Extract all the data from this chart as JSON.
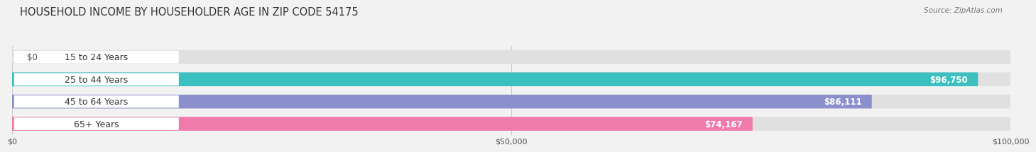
{
  "title": "HOUSEHOLD INCOME BY HOUSEHOLDER AGE IN ZIP CODE 54175",
  "source": "Source: ZipAtlas.com",
  "categories": [
    "15 to 24 Years",
    "25 to 44 Years",
    "45 to 64 Years",
    "65+ Years"
  ],
  "values": [
    0,
    96750,
    86111,
    74167
  ],
  "bar_colors": [
    "#c9a8d4",
    "#3bbfbf",
    "#8b8fcc",
    "#f07aaa"
  ],
  "value_labels": [
    "$0",
    "$96,750",
    "$86,111",
    "$74,167"
  ],
  "x_ticks": [
    0,
    50000,
    100000
  ],
  "x_tick_labels": [
    "$0",
    "$50,000",
    "$100,000"
  ],
  "xlim": [
    0,
    100000
  ],
  "background_color": "#f2f2f2",
  "bar_background_color": "#e0e0e0",
  "bar_height": 0.62,
  "title_fontsize": 10.5,
  "label_fontsize": 9,
  "value_fontsize": 8.5
}
